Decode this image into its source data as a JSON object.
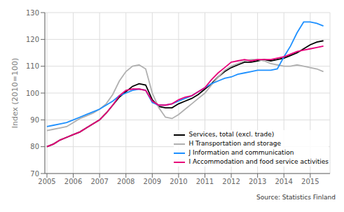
{
  "chart_data": {
    "type": "line",
    "ylabel": "Index (2010=100)",
    "annotations": [
      "Source: Statistics Finland"
    ],
    "xlim": [
      2004.92,
      2015.75
    ],
    "xticks": [
      2005,
      2006,
      2007,
      2008,
      2009,
      2010,
      2011,
      2012,
      2013,
      2014,
      2015
    ],
    "ylim": [
      70,
      130
    ],
    "yticks": [
      70,
      80,
      90,
      100,
      110,
      120,
      130
    ],
    "grid": true,
    "legend": "lower right",
    "x": [
      2005.0,
      2005.25,
      2005.5,
      2005.75,
      2006.0,
      2006.25,
      2006.5,
      2006.75,
      2007.0,
      2007.25,
      2007.5,
      2007.75,
      2008.0,
      2008.25,
      2008.5,
      2008.75,
      2009.0,
      2009.25,
      2009.5,
      2009.75,
      2010.0,
      2010.25,
      2010.5,
      2010.75,
      2011.0,
      2011.25,
      2011.5,
      2011.75,
      2012.0,
      2012.25,
      2012.5,
      2012.75,
      2013.0,
      2013.25,
      2013.5,
      2013.75,
      2014.0,
      2014.25,
      2014.5,
      2014.75,
      2015.0,
      2015.25,
      2015.5
    ],
    "series": [
      {
        "name": "Services, total  (excl. trade)",
        "color": "#000000",
        "values": [
          80.0,
          81.0,
          82.5,
          83.5,
          84.5,
          85.5,
          87.0,
          88.5,
          90.0,
          92.5,
          95.5,
          98.5,
          100.5,
          102.5,
          103.5,
          103.0,
          97.5,
          95.0,
          94.5,
          94.5,
          96.0,
          97.0,
          98.0,
          99.5,
          101.5,
          103.5,
          106.0,
          108.0,
          109.5,
          110.5,
          111.5,
          111.5,
          112.0,
          112.5,
          112.0,
          112.5,
          113.0,
          114.0,
          115.0,
          116.5,
          118.0,
          119.0,
          119.5
        ]
      },
      {
        "name": "H Transportation and storage",
        "color": "#b0b0b0",
        "values": [
          86.0,
          86.5,
          87.0,
          87.5,
          89.0,
          90.5,
          91.5,
          92.5,
          94.0,
          96.0,
          99.5,
          104.5,
          108.0,
          110.0,
          110.5,
          109.0,
          100.0,
          94.5,
          91.0,
          90.5,
          92.0,
          94.0,
          96.0,
          98.0,
          100.0,
          103.0,
          106.0,
          108.5,
          110.0,
          111.0,
          112.0,
          112.5,
          112.5,
          112.0,
          111.0,
          110.5,
          110.0,
          110.0,
          110.5,
          110.0,
          109.5,
          109.0,
          108.0
        ]
      },
      {
        "name": "J Information and communication",
        "color": "#1e90ff",
        "values": [
          87.5,
          88.0,
          88.5,
          89.0,
          90.0,
          91.0,
          92.0,
          93.0,
          94.0,
          95.5,
          97.0,
          99.0,
          100.0,
          101.0,
          101.5,
          101.0,
          96.5,
          95.5,
          95.5,
          96.0,
          97.0,
          98.0,
          99.0,
          100.5,
          102.0,
          103.5,
          104.5,
          105.5,
          106.0,
          107.0,
          107.5,
          108.0,
          108.5,
          108.5,
          108.5,
          109.0,
          113.5,
          117.5,
          122.5,
          126.5,
          126.5,
          126.0,
          125.0
        ]
      },
      {
        "name": "I Accommodation and food service activities",
        "color": "#e8007a",
        "values": [
          80.0,
          81.0,
          82.5,
          83.5,
          84.5,
          85.5,
          87.0,
          88.5,
          90.0,
          92.5,
          95.5,
          99.0,
          101.0,
          101.5,
          101.5,
          101.0,
          97.0,
          95.5,
          95.5,
          96.0,
          97.5,
          98.5,
          99.0,
          100.5,
          102.0,
          105.0,
          107.5,
          109.5,
          111.5,
          112.0,
          112.5,
          112.0,
          112.5,
          112.5,
          112.5,
          113.0,
          113.5,
          114.5,
          115.5,
          116.0,
          116.5,
          117.0,
          117.5
        ]
      }
    ]
  }
}
